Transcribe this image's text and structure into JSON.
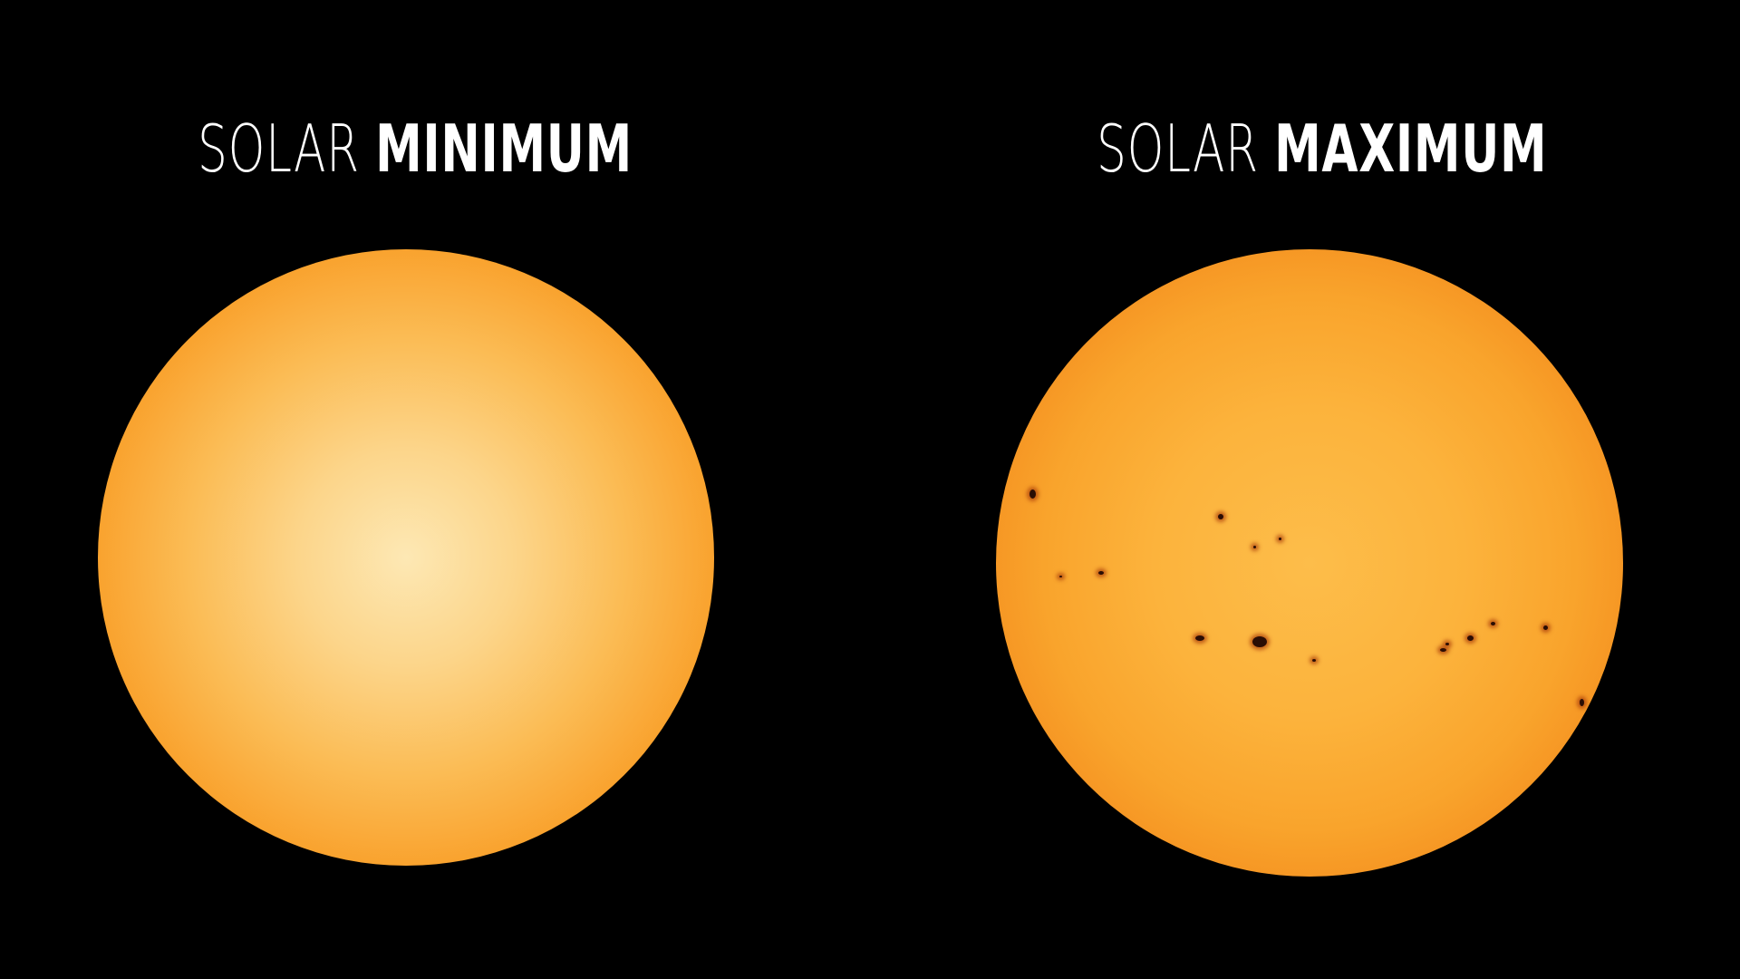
{
  "panels": [
    {
      "title_light": "SOLAR",
      "title_bold": "MINIMUM"
    },
    {
      "title_light": "SOLAR",
      "title_bold": "MAXIMUM"
    }
  ],
  "colors": {
    "background": "#000000",
    "sun_center_min": "#fde8b4",
    "sun_center_max": "#fdbd4a",
    "sun_limb": "#de560b",
    "sunspot": "#2a0d04"
  }
}
